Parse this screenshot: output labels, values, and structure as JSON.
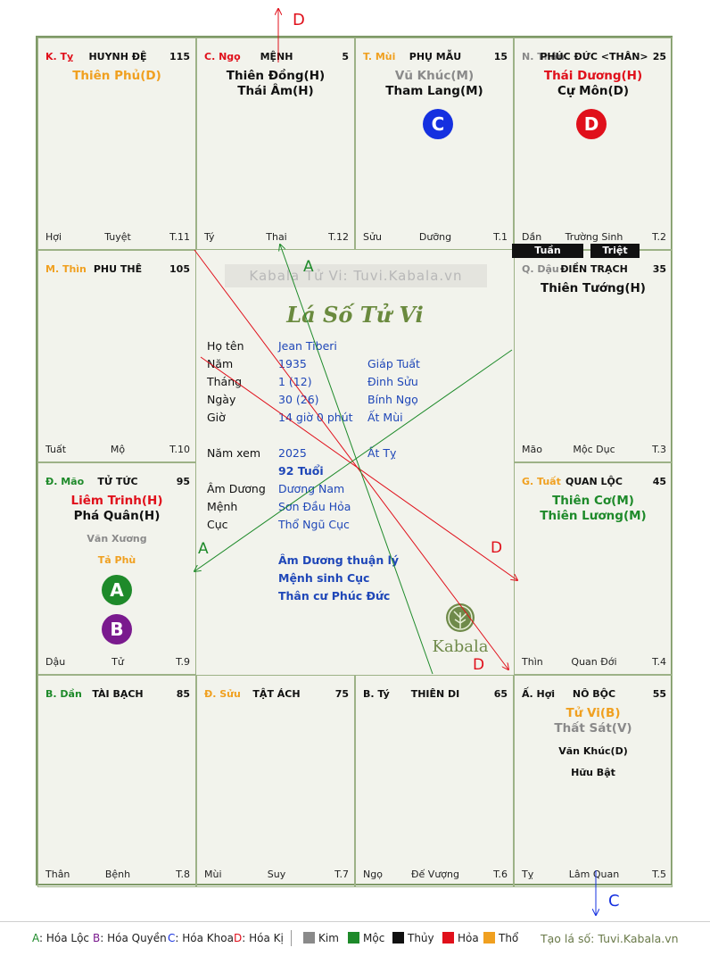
{
  "colors": {
    "red": "#e0101b",
    "green": "#1e8a2a",
    "orange": "#f0a020",
    "gray": "#8a8a8a",
    "blue": "#1530e0",
    "purple": "#7a1a8e"
  },
  "cells": [
    {
      "id": "ty",
      "palace": "K. Tỵ",
      "palace_color": "#e0101b",
      "name": "HUYNH ĐỆ",
      "num": "115",
      "stars": [
        {
          "t": "Thiên Phủ(D)",
          "c": "#f0a020"
        }
      ],
      "minors": [],
      "footer": [
        "Hợi",
        "Tuyệt",
        "T.11"
      ]
    },
    {
      "id": "ngo",
      "palace": "C. Ngọ",
      "palace_color": "#e0101b",
      "name": "MỆNH",
      "num": "5",
      "stars": [
        {
          "t": "Thiên Đồng(H)",
          "c": "#111111"
        },
        {
          "t": "Thái Âm(H)",
          "c": "#111111"
        }
      ],
      "minors": [],
      "footer": [
        "Tý",
        "Thai",
        "T.12"
      ]
    },
    {
      "id": "mui",
      "palace": "T. Mùi",
      "palace_color": "#f0a020",
      "name": "PHỤ MẪU",
      "num": "15",
      "stars": [
        {
          "t": "Vũ Khúc(M)",
          "c": "#8a8a8a"
        },
        {
          "t": "Tham Lang(M)",
          "c": "#111111"
        }
      ],
      "minors": [],
      "footer": [
        "Sửu",
        "Dưỡng",
        "T.1"
      ]
    },
    {
      "id": "than",
      "palace": "N. Thân",
      "palace_color": "#8a8a8a",
      "name": "PHÚC ĐỨC <THÂN>",
      "num": "25",
      "stars": [
        {
          "t": "Thái Dương(H)",
          "c": "#e0101b"
        },
        {
          "t": "Cự Môn(D)",
          "c": "#111111"
        }
      ],
      "minors": [],
      "footer": [
        "Dần",
        "Trường Sinh",
        "T.2"
      ]
    },
    {
      "id": "thin",
      "palace": "M. Thìn",
      "palace_color": "#f0a020",
      "name": "PHU THÊ",
      "num": "105",
      "stars": [],
      "minors": [],
      "footer": [
        "Tuất",
        "Mộ",
        "T.10"
      ]
    },
    {
      "id": "dau",
      "palace": "Q. Dậu",
      "palace_color": "#8a8a8a",
      "name": "ĐIỀN TRẠCH",
      "num": "35",
      "stars": [
        {
          "t": "Thiên Tướng(H)",
          "c": "#111111"
        }
      ],
      "minors": [],
      "footer": [
        "Mão",
        "Mộc Dục",
        "T.3"
      ]
    },
    {
      "id": "mao",
      "palace": "Đ. Mão",
      "palace_color": "#1e8a2a",
      "name": "TỬ TỨC",
      "num": "95",
      "stars": [
        {
          "t": "Liêm Trinh(H)",
          "c": "#e0101b"
        },
        {
          "t": "Phá Quân(H)",
          "c": "#111111"
        }
      ],
      "minors": [
        {
          "t": "Văn Xương",
          "c": "#8a8a8a"
        },
        {
          "t": "Tả Phù",
          "c": "#f0a020"
        }
      ],
      "footer": [
        "Dậu",
        "Tử",
        "T.9"
      ]
    },
    {
      "id": "tuat",
      "palace": "G. Tuất",
      "palace_color": "#f0a020",
      "name": "QUAN LỘC",
      "num": "45",
      "stars": [
        {
          "t": "Thiên Cơ(M)",
          "c": "#1e8a2a"
        },
        {
          "t": "Thiên Lương(M)",
          "c": "#1e8a2a"
        }
      ],
      "minors": [],
      "footer": [
        "Thìn",
        "Quan Đới",
        "T.4"
      ]
    },
    {
      "id": "dan",
      "palace": "B. Dần",
      "palace_color": "#1e8a2a",
      "name": "TÀI BẠCH",
      "num": "85",
      "stars": [],
      "minors": [],
      "footer": [
        "Thân",
        "Bệnh",
        "T.8"
      ]
    },
    {
      "id": "suu",
      "palace": "Đ. Sửu",
      "palace_color": "#f0a020",
      "name": "TẬT ÁCH",
      "num": "75",
      "stars": [],
      "minors": [],
      "footer": [
        "Mùi",
        "Suy",
        "T.7"
      ]
    },
    {
      "id": "ty2",
      "palace": "B. Tý",
      "palace_color": "#111111",
      "name": "THIÊN DI",
      "num": "65",
      "stars": [],
      "minors": [],
      "footer": [
        "Ngọ",
        "Đế Vượng",
        "T.6"
      ]
    },
    {
      "id": "hoi",
      "palace": "Ấ. Hợi",
      "palace_color": "#111111",
      "name": "NÔ BỘC",
      "num": "55",
      "stars": [
        {
          "t": "Tử Vi(B)",
          "c": "#f0a020"
        },
        {
          "t": "Thất Sát(V)",
          "c": "#8a8a8a"
        }
      ],
      "minors": [
        {
          "t": "Văn Khúc(D)",
          "c": "#111111"
        },
        {
          "t": "Hữu Bật",
          "c": "#111111"
        }
      ],
      "footer": [
        "Tỵ",
        "Lâm Quan",
        "T.5"
      ]
    }
  ],
  "circles": [
    {
      "label": "C",
      "color": "#1530e0",
      "cell": "mui"
    },
    {
      "label": "D",
      "color": "#e0101b",
      "cell": "than"
    },
    {
      "label": "A",
      "color": "#1e8a2a",
      "cell": "mao"
    },
    {
      "label": "B",
      "color": "#7a1a8e",
      "cell": "mao"
    }
  ],
  "tuan_triet": {
    "tuan": "Tuần",
    "triet": "Triệt"
  },
  "center": {
    "watermark": "Kabala Tử Vi: Tuvi.Kabala.vn",
    "title": "Lá Số Tử Vi",
    "rows": [
      {
        "k": "Họ tên",
        "v1": "Jean Tiberi",
        "v2": ""
      },
      {
        "k": "Năm",
        "v1": "1935",
        "v2": "Giáp Tuất"
      },
      {
        "k": "Tháng",
        "v1": "1  (12)",
        "v2": "Đinh Sửu"
      },
      {
        "k": "Ngày",
        "v1": "30  (26)",
        "v2": "Bính Ngọ"
      },
      {
        "k": "Giờ",
        "v1": "14 giờ 0 phút",
        "v2": "Ất Mùi"
      }
    ],
    "nam_xem": {
      "k": "Năm xem",
      "v1": "2025",
      "v2": "Ất Tỵ"
    },
    "tuoi": "92 Tuổi",
    "rows2": [
      {
        "k": "Âm Dương",
        "v": "Dương Nam"
      },
      {
        "k": "Mệnh",
        "v": "Sơn Đầu Hỏa"
      },
      {
        "k": "Cục",
        "v": "Thổ Ngũ Cục"
      }
    ],
    "notes": [
      "Âm Dương thuận lý",
      "Mệnh sinh Cục",
      "Thân cư Phúc Đức"
    ],
    "logo_text": "Kabala"
  },
  "arrow_labels": {
    "top": "D",
    "bottom": "C",
    "a1": "A",
    "a2": "A",
    "d1": "D",
    "d2": "D"
  },
  "legend": {
    "items": [
      {
        "k": "A",
        "v": "Hóa Lộc",
        "c": "#1e8a2a"
      },
      {
        "k": "B",
        "v": "Hóa Quyền",
        "c": "#7a1a8e"
      },
      {
        "k": "C",
        "v": "Hóa Khoa",
        "c": "#1530e0"
      },
      {
        "k": "D",
        "v": "Hóa Kị",
        "c": "#e0101b"
      }
    ],
    "elements": [
      {
        "name": "Kim",
        "c": "#8a8a8a"
      },
      {
        "name": "Mộc",
        "c": "#1e8a2a"
      },
      {
        "name": "Thủy",
        "c": "#111111"
      },
      {
        "name": "Hỏa",
        "c": "#e0101b"
      },
      {
        "name": "Thổ",
        "c": "#f0a020"
      }
    ],
    "link": "Tạo lá số: Tuvi.Kabala.vn"
  }
}
